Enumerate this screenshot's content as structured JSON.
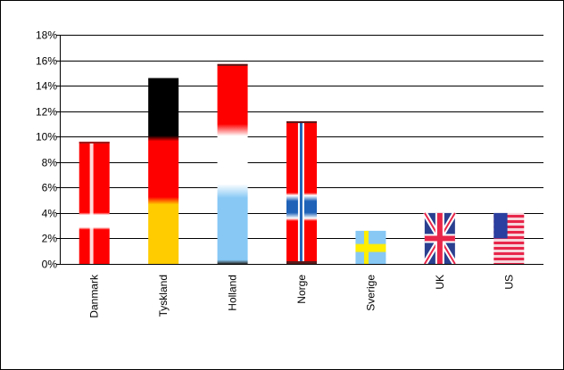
{
  "chart_data": {
    "type": "bar",
    "categories": [
      "Danmark",
      "Tyskland",
      "Holland",
      "Norge",
      "Sverige",
      "UK",
      "US"
    ],
    "values": [
      9.6,
      14.6,
      15.7,
      11.2,
      2.6,
      4.0,
      4.0
    ],
    "flag_icons": [
      "denmark-flag",
      "germany-flag",
      "netherlands-flag",
      "norway-flag",
      "sweden-flag",
      "uk-flag",
      "us-flag"
    ],
    "y_ticks": [
      "0%",
      "2%",
      "4%",
      "6%",
      "8%",
      "10%",
      "12%",
      "14%",
      "16%",
      "18%"
    ],
    "ylim": [
      0,
      18
    ],
    "grid": true,
    "title": "",
    "xlabel": "",
    "ylabel": ""
  }
}
